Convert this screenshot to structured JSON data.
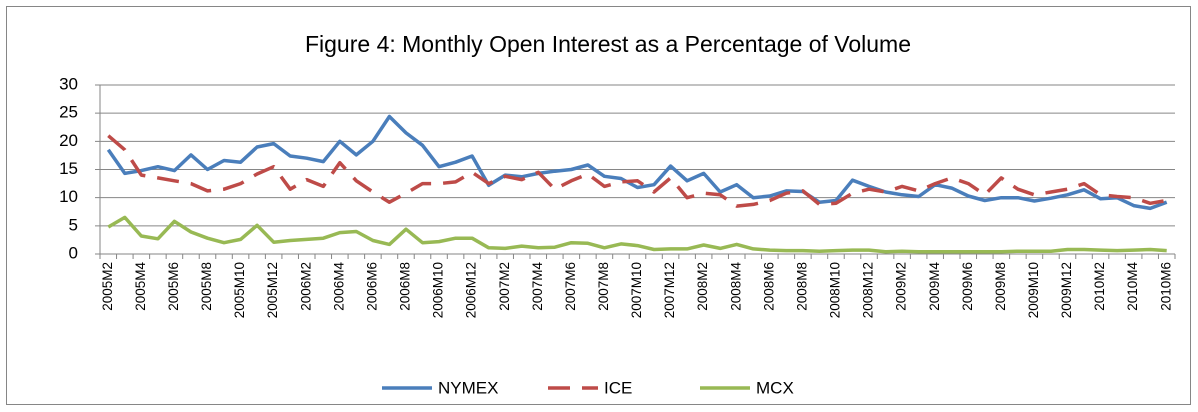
{
  "chart_data": {
    "type": "line",
    "title": "Figure 4: Monthly Open Interest as a Percentage of Volume",
    "categories": [
      "2005M2",
      null,
      "2005M4",
      null,
      "2005M6",
      null,
      "2005M8",
      null,
      "2005M10",
      null,
      "2005M12",
      null,
      "2006M2",
      null,
      "2006M4",
      null,
      "2006M6",
      null,
      "2006M8",
      null,
      "2006M10",
      null,
      "2006M12",
      null,
      "2007M2",
      null,
      "2007M4",
      null,
      "2007M6",
      null,
      "2007M8",
      null,
      "2007M10",
      null,
      "2007M12",
      null,
      "2008M2",
      null,
      "2008M4",
      null,
      "2008M6",
      null,
      "2008M8",
      null,
      "2008M10",
      null,
      "2008M12",
      null,
      "2009M2",
      null,
      "2009M4",
      null,
      "2009M6",
      null,
      "2009M8",
      null,
      "2009M10",
      null,
      "2009M12",
      null,
      "2010M2",
      null,
      "2010M4",
      null,
      "2010M6"
    ],
    "series": [
      {
        "name": "NYMEX",
        "color": "#4a7ebb",
        "style": "solid",
        "values": [
          18.5,
          14.3,
          14.8,
          15.5,
          14.8,
          17.6,
          15.0,
          16.6,
          16.3,
          19.0,
          19.6,
          17.4,
          17.0,
          16.4,
          20.0,
          17.6,
          20.0,
          24.4,
          21.5,
          19.3,
          15.5,
          16.3,
          17.4,
          12.2,
          14.0,
          13.7,
          14.3,
          14.7,
          15.0,
          15.8,
          13.8,
          13.4,
          11.8,
          12.3,
          15.6,
          13.0,
          14.3,
          11.0,
          12.3,
          10.0,
          10.3,
          11.2,
          11.1,
          9.2,
          9.5,
          13.1,
          12.0,
          11.0,
          10.5,
          10.2,
          12.3,
          11.7,
          10.3,
          9.5,
          10.0,
          10.0,
          9.4,
          9.9,
          10.5,
          11.4,
          9.8,
          10.0,
          8.6,
          8.1,
          9.2
        ]
      },
      {
        "name": "ICE",
        "color": "#be4b48",
        "style": "dashed",
        "values": [
          21.0,
          18.5,
          14.0,
          13.5,
          13.0,
          12.5,
          11.2,
          11.5,
          12.5,
          14.2,
          15.5,
          11.5,
          13.2,
          12.0,
          16.2,
          13.0,
          11.0,
          9.2,
          10.8,
          12.5,
          12.5,
          12.8,
          14.5,
          12.5,
          13.8,
          13.2,
          14.5,
          11.5,
          13.0,
          14.2,
          12.0,
          12.8,
          13.0,
          11.0,
          13.5,
          10.0,
          10.8,
          10.5,
          8.5,
          8.8,
          9.5,
          10.8,
          11.2,
          8.8,
          9.0,
          10.8,
          11.5,
          11.0,
          12.0,
          11.2,
          12.5,
          13.5,
          12.5,
          10.5,
          13.5,
          11.5,
          10.5,
          11.0,
          11.5,
          12.5,
          10.5,
          10.2,
          10.0,
          9.0,
          9.5
        ]
      },
      {
        "name": "MCX",
        "color": "#98b954",
        "style": "solid",
        "values": [
          4.8,
          6.5,
          3.2,
          2.7,
          5.8,
          3.9,
          2.8,
          2.0,
          2.6,
          5.1,
          2.1,
          2.4,
          2.6,
          2.8,
          3.8,
          4.0,
          2.4,
          1.7,
          4.4,
          2.0,
          2.2,
          2.8,
          2.8,
          1.1,
          1.0,
          1.4,
          1.1,
          1.2,
          2.0,
          1.9,
          1.1,
          1.8,
          1.5,
          0.8,
          0.9,
          0.9,
          1.6,
          1.0,
          1.7,
          0.9,
          0.7,
          0.6,
          0.6,
          0.5,
          0.6,
          0.7,
          0.7,
          0.4,
          0.5,
          0.4,
          0.4,
          0.4,
          0.4,
          0.4,
          0.4,
          0.5,
          0.5,
          0.5,
          0.8,
          0.8,
          0.7,
          0.6,
          0.7,
          0.8,
          0.6
        ]
      }
    ],
    "ylim": [
      0,
      30
    ],
    "yticks": [
      0,
      5,
      10,
      15,
      20,
      25,
      30
    ],
    "grid": true,
    "legend": "bottom"
  }
}
